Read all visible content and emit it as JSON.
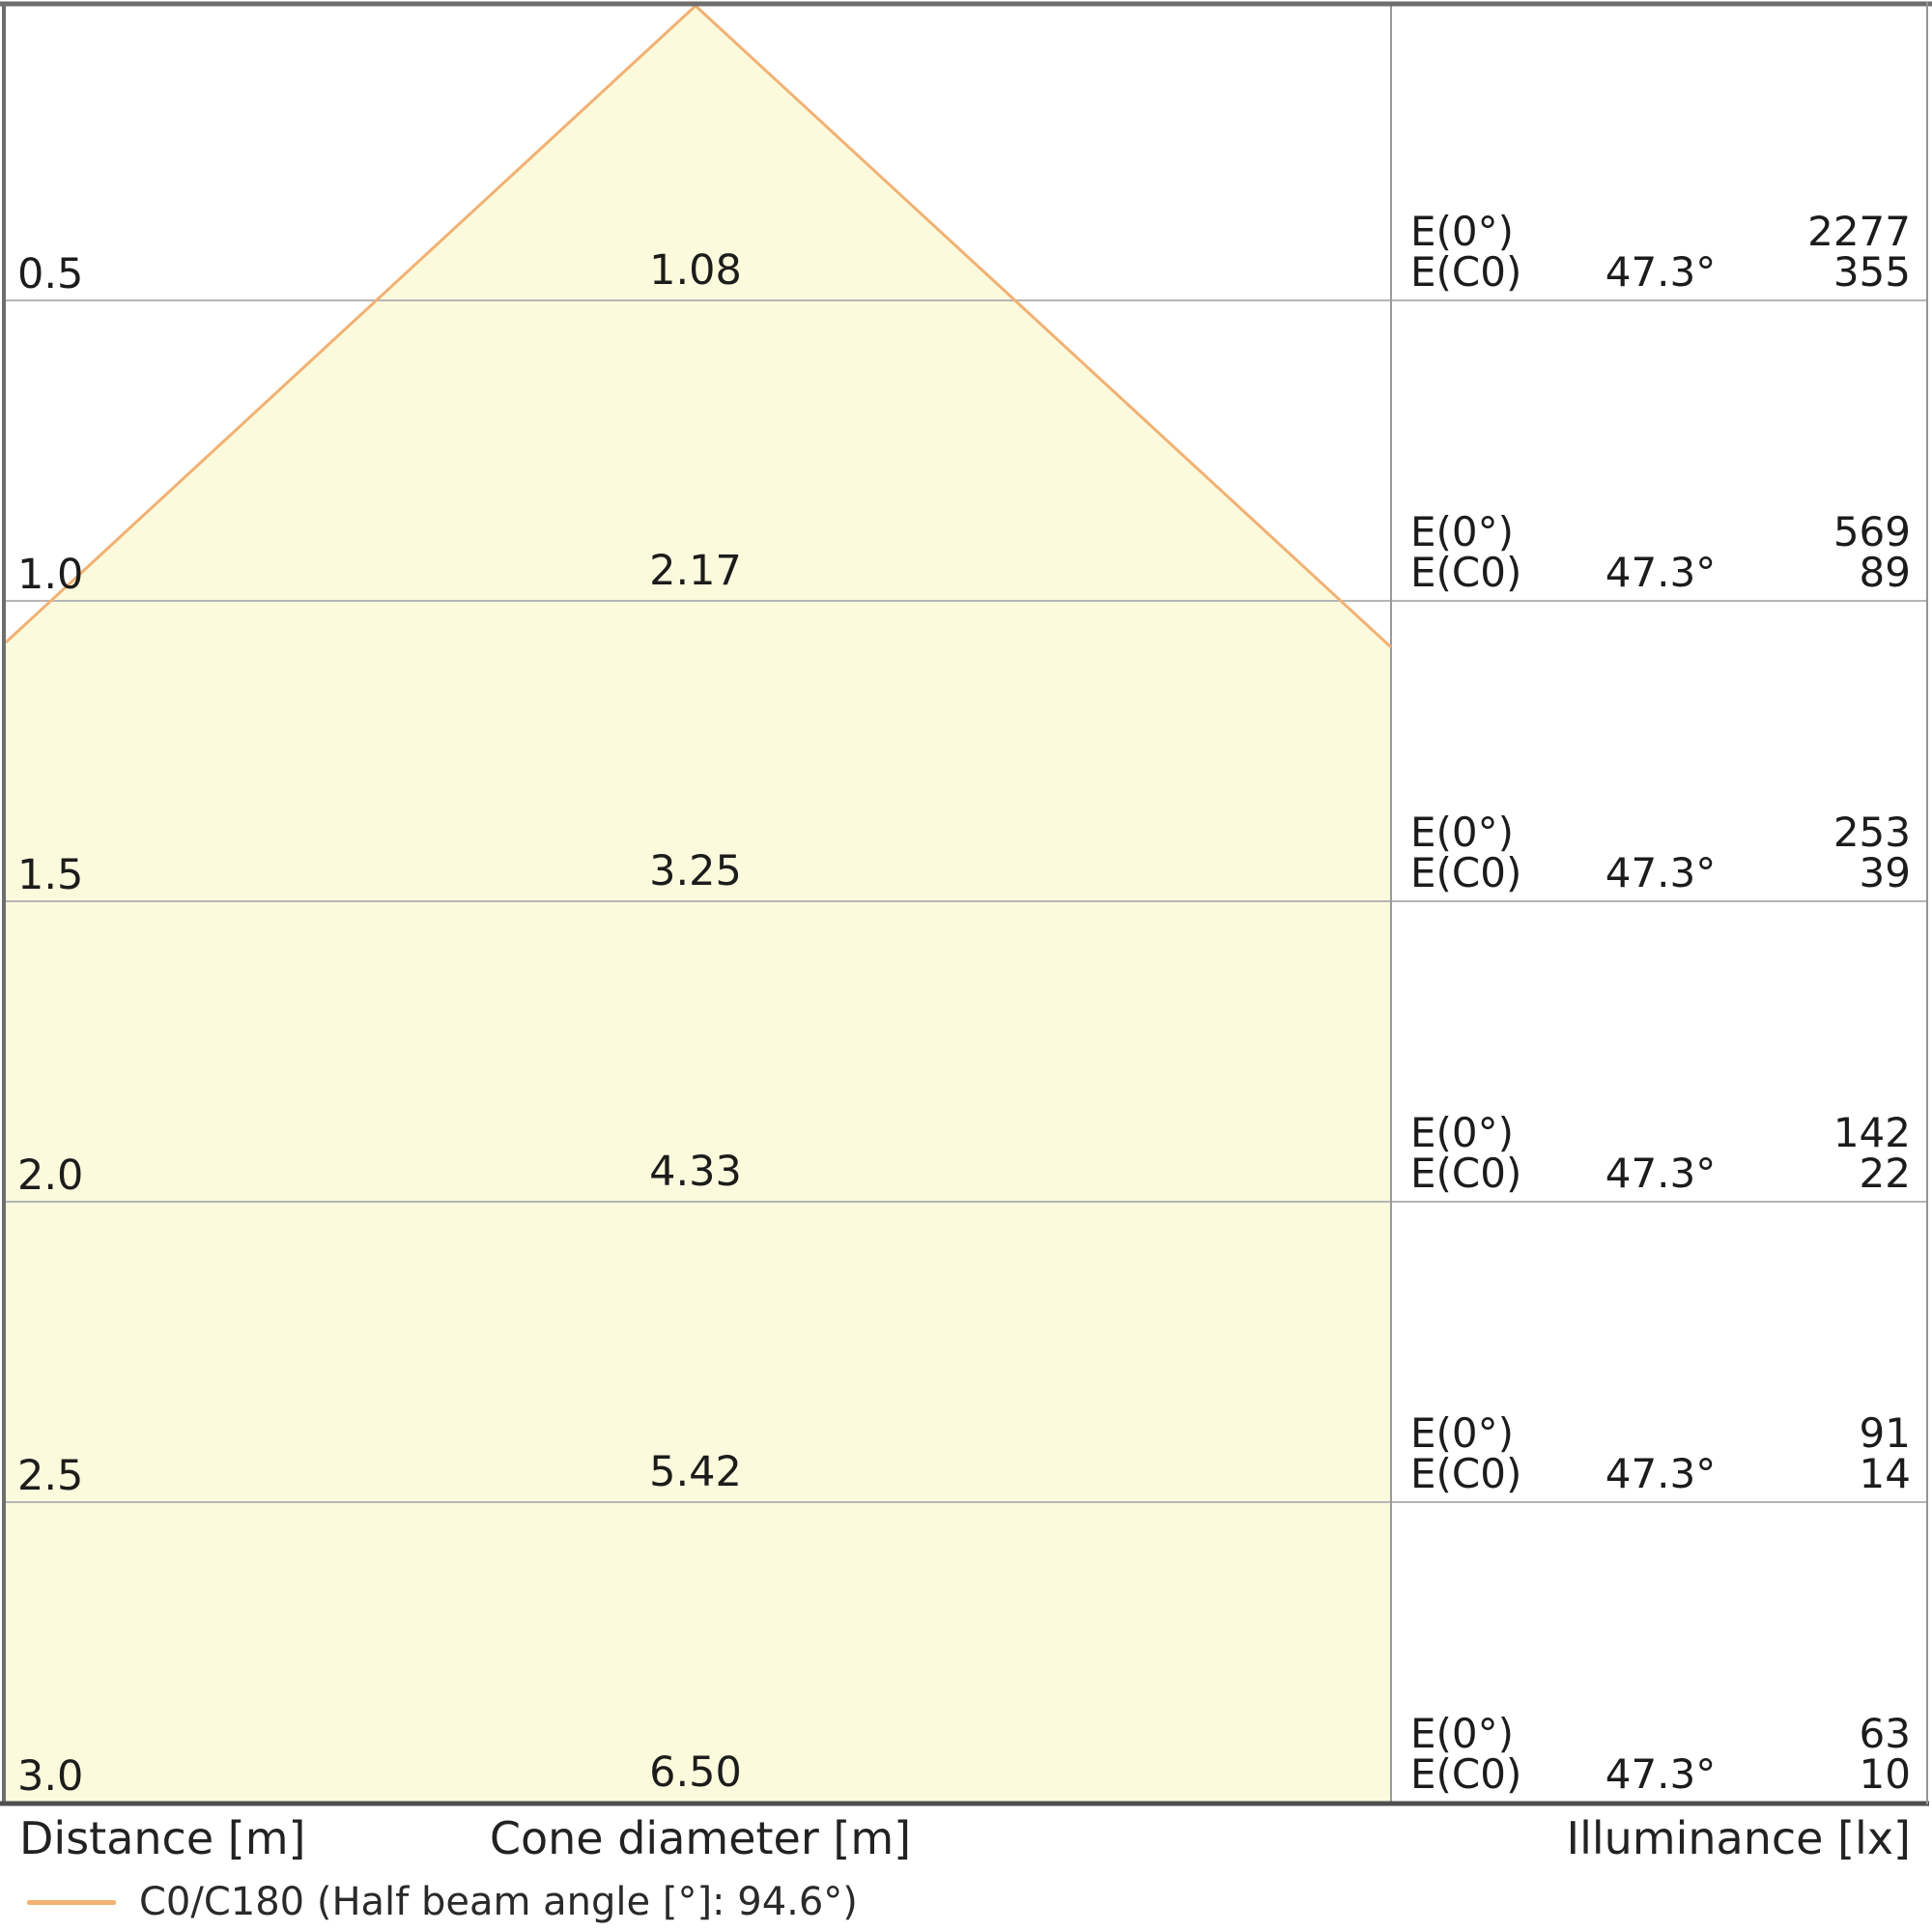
{
  "chart_data": {
    "type": "area",
    "subtype": "luminaire-light-cone-diagram",
    "axis_labels": {
      "distance": "Distance [m]",
      "cone_diameter": "Cone diameter [m]",
      "illuminance": "Illuminance [lx]"
    },
    "legend": {
      "series_label": "C0/C180 (Half beam angle [°]: 94.6°)",
      "color": "#f2b173"
    },
    "half_beam_angle_deg": 94.6,
    "beam_angle_column_deg": 47.3,
    "distances_m": [
      0.5,
      1.0,
      1.5,
      2.0,
      2.5,
      3.0
    ],
    "cone_diameters_m": [
      1.08,
      2.17,
      3.25,
      4.33,
      5.42,
      6.5
    ],
    "illuminance_e0_lx": [
      2277,
      569,
      253,
      142,
      91,
      63
    ],
    "illuminance_ec0_lx": [
      355,
      89,
      39,
      22,
      14,
      10
    ],
    "rows": [
      {
        "distance": "0.5",
        "cone_diameter": "1.08",
        "e0_label": "E(0°)",
        "e0_value": "2277",
        "ec0_label": "E(C0)",
        "angle": "47.3°",
        "ec0_value": "355"
      },
      {
        "distance": "1.0",
        "cone_diameter": "2.17",
        "e0_label": "E(0°)",
        "e0_value": "569",
        "ec0_label": "E(C0)",
        "angle": "47.3°",
        "ec0_value": "89"
      },
      {
        "distance": "1.5",
        "cone_diameter": "3.25",
        "e0_label": "E(0°)",
        "e0_value": "253",
        "ec0_label": "E(C0)",
        "angle": "47.3°",
        "ec0_value": "39"
      },
      {
        "distance": "2.0",
        "cone_diameter": "4.33",
        "e0_label": "E(0°)",
        "e0_value": "142",
        "ec0_label": "E(C0)",
        "angle": "47.3°",
        "ec0_value": "22"
      },
      {
        "distance": "2.5",
        "cone_diameter": "5.42",
        "e0_label": "E(0°)",
        "e0_value": "91",
        "ec0_label": "E(C0)",
        "angle": "47.3°",
        "ec0_value": "14"
      },
      {
        "distance": "3.0",
        "cone_diameter": "6.50",
        "e0_label": "E(0°)",
        "e0_value": "63",
        "ec0_label": "E(C0)",
        "angle": "47.3°",
        "ec0_value": "10"
      }
    ],
    "colors": {
      "cone_fill": "#fcfadc",
      "cone_edge": "#f2b173",
      "grid_line": "#b5b5b5",
      "divider_line": "#9a9a9a",
      "frame": "#6e6e6e",
      "text": "#1c1c1c"
    },
    "layout_hints": {
      "grid": "horizontal rows per 0.5 m distance",
      "legend_position": "bottom-left",
      "value_table_position": "right column"
    }
  }
}
